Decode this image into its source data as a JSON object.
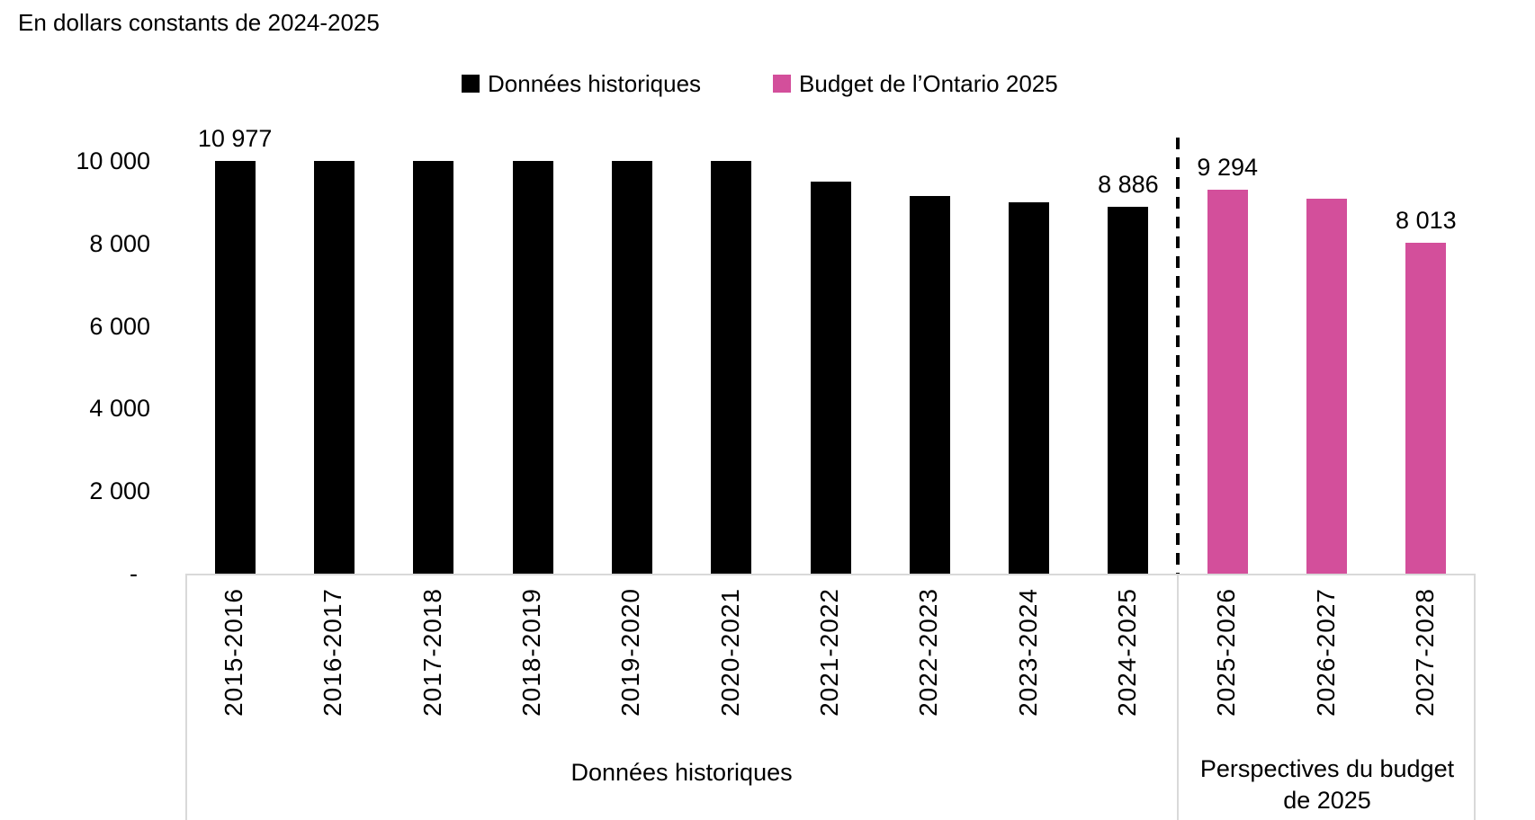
{
  "title": "En dollars constants de 2024-2025",
  "legend": {
    "items": [
      {
        "label": "Données historiques",
        "color": "#000000",
        "swatch": "black-square-icon"
      },
      {
        "label": "Budget de l’Ontario 2025",
        "color": "#d34f9b",
        "swatch": "pink-square-icon"
      }
    ]
  },
  "chart_data": {
    "type": "bar",
    "title": "En dollars constants de 2024-2025",
    "categories": [
      "2015-2016",
      "2016-2017",
      "2017-2018",
      "2018-2019",
      "2019-2020",
      "2020-2021",
      "2021-2022",
      "2022-2023",
      "2023-2024",
      "2024-2025",
      "2025-2026",
      "2026-2027",
      "2027-2028"
    ],
    "series": [
      {
        "name": "Données historiques",
        "color": "#000000",
        "category_indices": [
          0,
          9
        ]
      },
      {
        "name": "Budget de l’Ontario 2025",
        "color": "#d34f9b",
        "category_indices": [
          10,
          12
        ]
      }
    ],
    "values": [
      10977,
      10000,
      10000,
      10000,
      10000,
      10000,
      9500,
      9150,
      9000,
      8886,
      9294,
      9080,
      8013
    ],
    "value_labels": {
      "0": "10 977",
      "9": "8 886",
      "10": "9 294",
      "12": "8 013"
    },
    "clipping_note": "Bars 2015-2016 through 2020-2021 are drawn clipped at the 10 000 axis maximum; 2015-2016 is labelled 10 977. Unlabelled bar values are estimated from pixel heights.",
    "ylim": [
      0,
      10000
    ],
    "yticks": [
      {
        "value": 0,
        "label": "-"
      },
      {
        "value": 2000,
        "label": "2 000"
      },
      {
        "value": 4000,
        "label": "4 000"
      },
      {
        "value": 6000,
        "label": "6 000"
      },
      {
        "value": 8000,
        "label": "8 000"
      },
      {
        "value": 10000,
        "label": "10 000"
      }
    ],
    "xlabel": "",
    "ylabel": "",
    "grid": false,
    "legend_position": "top",
    "separator_after_index": 9,
    "separator_style": "dashed-vertical-line",
    "group_labels": [
      {
        "label": "Données historiques",
        "start": 0,
        "end": 9
      },
      {
        "label": "Perspectives du budget de 2025",
        "start": 10,
        "end": 12
      }
    ],
    "axis_box_border_color": "#d9d9d9"
  }
}
